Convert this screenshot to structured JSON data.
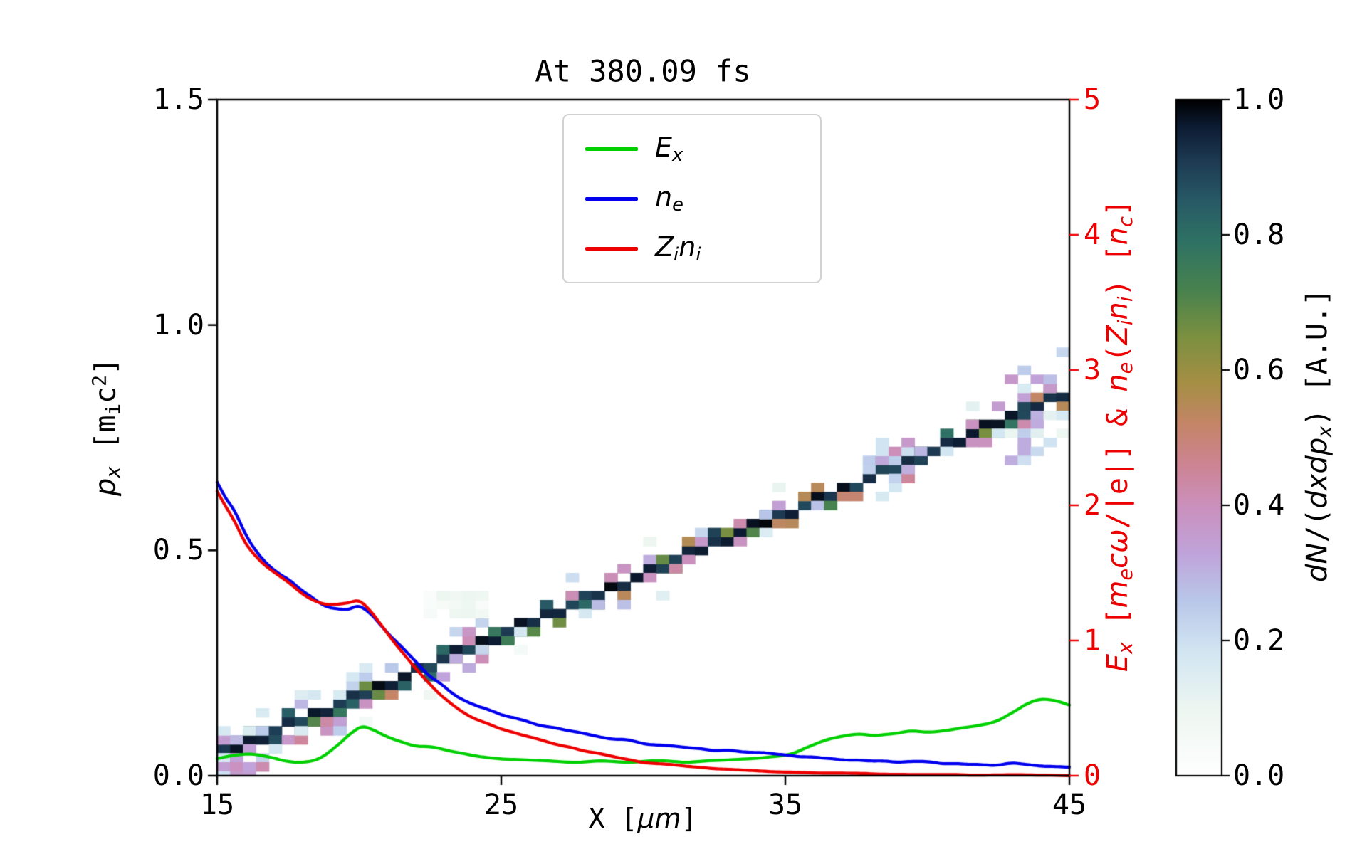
{
  "chart_data": {
    "type": "line+heatmap",
    "title": "At 380.09 fs",
    "x_axis": {
      "label": "X [μm]",
      "range": [
        15,
        45
      ],
      "ticks": [
        15,
        25,
        35,
        45
      ],
      "tick_labels": [
        "15",
        "25",
        "35",
        "45"
      ]
    },
    "y_axis_left": {
      "label": "p_x [m_i c^2]",
      "range": [
        0.0,
        1.5
      ],
      "ticks": [
        0.0,
        0.5,
        1.0,
        1.5
      ],
      "tick_labels": [
        "0.0",
        "0.5",
        "1.0",
        "1.5"
      ],
      "color": "#000000"
    },
    "y_axis_right": {
      "label": "E_x [m_e cω/|e|] & n_e(Z_i n_i) [n_c]",
      "range": [
        0,
        5
      ],
      "ticks": [
        0,
        1,
        2,
        3,
        4,
        5
      ],
      "tick_labels": [
        "0",
        "1",
        "2",
        "3",
        "4",
        "5"
      ],
      "color": "#ee0000"
    },
    "colorbar": {
      "label": "dN/(dxdp_x) [A.U.]",
      "range": [
        0.0,
        1.0
      ],
      "ticks": [
        0.0,
        0.2,
        0.4,
        0.6,
        0.8,
        1.0
      ],
      "tick_labels": [
        "0.0",
        "0.2",
        "0.4",
        "0.6",
        "0.8",
        "1.0"
      ],
      "stops": [
        [
          0.0,
          "#ffffff"
        ],
        [
          0.1,
          "#edf6f1"
        ],
        [
          0.18,
          "#d3e7f2"
        ],
        [
          0.26,
          "#b9c7e9"
        ],
        [
          0.33,
          "#c0a3da"
        ],
        [
          0.4,
          "#cb90bc"
        ],
        [
          0.46,
          "#cd8493"
        ],
        [
          0.52,
          "#c48568"
        ],
        [
          0.58,
          "#a68f45"
        ],
        [
          0.65,
          "#7b9040"
        ],
        [
          0.72,
          "#47824f"
        ],
        [
          0.79,
          "#2f7264"
        ],
        [
          0.85,
          "#285a66"
        ],
        [
          0.91,
          "#1d3a52"
        ],
        [
          0.96,
          "#0d1c33"
        ],
        [
          1.0,
          "#000000"
        ]
      ]
    },
    "legend": {
      "entries": [
        {
          "key": "ex",
          "label": "E_x",
          "color": "#00d000",
          "segments": [
            {
              "t": "E",
              "s": "it"
            },
            {
              "t": "x",
              "s": "itsub"
            }
          ]
        },
        {
          "key": "ne",
          "label": "n_e",
          "color": "#0000ee",
          "segments": [
            {
              "t": "n",
              "s": "it"
            },
            {
              "t": "e",
              "s": "itsub"
            }
          ]
        },
        {
          "key": "zini",
          "label": "Z_i n_i",
          "color": "#ee0000",
          "segments": [
            {
              "t": "Z",
              "s": "it"
            },
            {
              "t": "i",
              "s": "itsub"
            },
            {
              "t": "n",
              "s": "it"
            },
            {
              "t": "i",
              "s": "itsub"
            }
          ]
        }
      ]
    },
    "series": [
      {
        "name": "Ex",
        "axis": "right",
        "color": "#00d000",
        "noise_amp": 0.018,
        "seed": 7,
        "points": [
          [
            15,
            0.13
          ],
          [
            15.6,
            0.15
          ],
          [
            16.2,
            0.16
          ],
          [
            16.8,
            0.14
          ],
          [
            17.4,
            0.11
          ],
          [
            18,
            0.1
          ],
          [
            18.6,
            0.13
          ],
          [
            19.2,
            0.22
          ],
          [
            19.7,
            0.31
          ],
          [
            20.1,
            0.36
          ],
          [
            20.5,
            0.34
          ],
          [
            21,
            0.29
          ],
          [
            21.5,
            0.25
          ],
          [
            22,
            0.22
          ],
          [
            22.6,
            0.21
          ],
          [
            23.2,
            0.18
          ],
          [
            24,
            0.15
          ],
          [
            24.8,
            0.13
          ],
          [
            25.6,
            0.12
          ],
          [
            26.5,
            0.11
          ],
          [
            27.5,
            0.1
          ],
          [
            28.5,
            0.11
          ],
          [
            29.5,
            0.1
          ],
          [
            30.5,
            0.11
          ],
          [
            31.5,
            0.1
          ],
          [
            32.5,
            0.11
          ],
          [
            33.5,
            0.12
          ],
          [
            34.5,
            0.14
          ],
          [
            35.2,
            0.16
          ],
          [
            35.8,
            0.21
          ],
          [
            36.4,
            0.26
          ],
          [
            37,
            0.29
          ],
          [
            37.6,
            0.31
          ],
          [
            38.2,
            0.3
          ],
          [
            38.8,
            0.31
          ],
          [
            39.4,
            0.33
          ],
          [
            40,
            0.32
          ],
          [
            40.6,
            0.33
          ],
          [
            41.2,
            0.35
          ],
          [
            41.8,
            0.37
          ],
          [
            42.4,
            0.4
          ],
          [
            43,
            0.47
          ],
          [
            43.5,
            0.53
          ],
          [
            44,
            0.56
          ],
          [
            44.5,
            0.55
          ],
          [
            45,
            0.52
          ]
        ]
      },
      {
        "name": "n_e",
        "axis": "right",
        "color": "#0000ee",
        "noise_amp": 0.045,
        "seed": 11,
        "points": [
          [
            15,
            2.17
          ],
          [
            15.3,
            2.05
          ],
          [
            15.6,
            1.95
          ],
          [
            16,
            1.78
          ],
          [
            16.4,
            1.66
          ],
          [
            16.8,
            1.56
          ],
          [
            17.2,
            1.49
          ],
          [
            17.6,
            1.43
          ],
          [
            18,
            1.36
          ],
          [
            18.4,
            1.31
          ],
          [
            18.8,
            1.27
          ],
          [
            19.2,
            1.25
          ],
          [
            19.6,
            1.24
          ],
          [
            20,
            1.26
          ],
          [
            20.4,
            1.2
          ],
          [
            20.8,
            1.1
          ],
          [
            21.2,
            1.0
          ],
          [
            21.6,
            0.92
          ],
          [
            22,
            0.84
          ],
          [
            22.4,
            0.76
          ],
          [
            22.8,
            0.69
          ],
          [
            23.2,
            0.62
          ],
          [
            23.6,
            0.57
          ],
          [
            24,
            0.53
          ],
          [
            24.5,
            0.49
          ],
          [
            25,
            0.45
          ],
          [
            25.5,
            0.42
          ],
          [
            26,
            0.4
          ],
          [
            26.5,
            0.37
          ],
          [
            27,
            0.35
          ],
          [
            27.5,
            0.33
          ],
          [
            28,
            0.31
          ],
          [
            28.5,
            0.29
          ],
          [
            29,
            0.27
          ],
          [
            29.5,
            0.26
          ],
          [
            30,
            0.24
          ],
          [
            30.5,
            0.23
          ],
          [
            31,
            0.22
          ],
          [
            31.5,
            0.21
          ],
          [
            32,
            0.2
          ],
          [
            32.5,
            0.19
          ],
          [
            33,
            0.19
          ],
          [
            33.5,
            0.18
          ],
          [
            34,
            0.17
          ],
          [
            34.5,
            0.16
          ],
          [
            35,
            0.15
          ],
          [
            35.5,
            0.14
          ],
          [
            36,
            0.14
          ],
          [
            36.5,
            0.13
          ],
          [
            37,
            0.12
          ],
          [
            37.5,
            0.12
          ],
          [
            38,
            0.11
          ],
          [
            38.5,
            0.11
          ],
          [
            39,
            0.1
          ],
          [
            39.5,
            0.1
          ],
          [
            40,
            0.1
          ],
          [
            40.5,
            0.09
          ],
          [
            41,
            0.09
          ],
          [
            41.5,
            0.08
          ],
          [
            42,
            0.08
          ],
          [
            42.5,
            0.08
          ],
          [
            43,
            0.09
          ],
          [
            43.5,
            0.08
          ],
          [
            44,
            0.07
          ],
          [
            44.5,
            0.07
          ],
          [
            45,
            0.06
          ]
        ]
      },
      {
        "name": "Z_i n_i",
        "axis": "right",
        "color": "#ee0000",
        "noise_amp": 0.022,
        "seed": 13,
        "points": [
          [
            15,
            2.1
          ],
          [
            15.3,
            2.0
          ],
          [
            15.6,
            1.9
          ],
          [
            16,
            1.74
          ],
          [
            16.4,
            1.63
          ],
          [
            16.8,
            1.54
          ],
          [
            17.2,
            1.47
          ],
          [
            17.6,
            1.41
          ],
          [
            18,
            1.35
          ],
          [
            18.4,
            1.3
          ],
          [
            18.8,
            1.27
          ],
          [
            19.2,
            1.27
          ],
          [
            19.6,
            1.28
          ],
          [
            20,
            1.29
          ],
          [
            20.4,
            1.22
          ],
          [
            20.8,
            1.11
          ],
          [
            21.2,
            1.0
          ],
          [
            21.6,
            0.9
          ],
          [
            22,
            0.8
          ],
          [
            22.4,
            0.7
          ],
          [
            22.8,
            0.61
          ],
          [
            23.2,
            0.54
          ],
          [
            23.6,
            0.48
          ],
          [
            24,
            0.43
          ],
          [
            24.5,
            0.39
          ],
          [
            25,
            0.35
          ],
          [
            25.5,
            0.32
          ],
          [
            26,
            0.29
          ],
          [
            26.5,
            0.26
          ],
          [
            27,
            0.23
          ],
          [
            27.5,
            0.21
          ],
          [
            28,
            0.18
          ],
          [
            28.5,
            0.16
          ],
          [
            29,
            0.14
          ],
          [
            29.5,
            0.12
          ],
          [
            30,
            0.1
          ],
          [
            30.5,
            0.09
          ],
          [
            31,
            0.08
          ],
          [
            31.5,
            0.07
          ],
          [
            32,
            0.06
          ],
          [
            32.5,
            0.05
          ],
          [
            33,
            0.045
          ],
          [
            33.5,
            0.04
          ],
          [
            34,
            0.035
          ],
          [
            34.5,
            0.03
          ],
          [
            35,
            0.028
          ],
          [
            36,
            0.022
          ],
          [
            37,
            0.018
          ],
          [
            38,
            0.014
          ],
          [
            39,
            0.011
          ],
          [
            40,
            0.009
          ],
          [
            41,
            0.007
          ],
          [
            42,
            0.006
          ],
          [
            43,
            0.005
          ],
          [
            44,
            0.004
          ],
          [
            45,
            0.003
          ]
        ]
      }
    ],
    "phase_band": {
      "description": "ion phase-space density band dN/(dxdp_x)",
      "x_range": [
        15,
        45
      ],
      "p_range": [
        0.045,
        0.85
      ],
      "cell_w_um": 0.4545,
      "cell_h_p": 0.02,
      "core_value_range": [
        0.88,
        1.0
      ],
      "seed": 99,
      "faint_blob": {
        "x_range": [
          22.2,
          24.4
        ],
        "p_range": [
          0.355,
          0.41
        ],
        "value_range": [
          0.03,
          0.1
        ]
      }
    }
  },
  "labels": {
    "xlabel_segments": [
      {
        "t": "X [",
        "s": "mono"
      },
      {
        "t": "μm",
        "s": "it"
      },
      {
        "t": "]",
        "s": "mono"
      }
    ],
    "left_ylabel_segments": [
      {
        "t": "p",
        "s": "it"
      },
      {
        "t": "x",
        "s": "itsub"
      },
      {
        "t": " [",
        "s": "mono"
      },
      {
        "t": "m",
        "s": "mono"
      },
      {
        "t": "i",
        "s": "monosub"
      },
      {
        "t": "c",
        "s": "mono"
      },
      {
        "t": "2",
        "s": "monosup"
      },
      {
        "t": "]",
        "s": "mono"
      }
    ],
    "right_ylabel_segments": [
      {
        "t": "E",
        "s": "it"
      },
      {
        "t": "x",
        "s": "itsub"
      },
      {
        "t": " [",
        "s": "mono"
      },
      {
        "t": "m",
        "s": "it"
      },
      {
        "t": "e",
        "s": "itsub"
      },
      {
        "t": "c",
        "s": "it"
      },
      {
        "t": "ω",
        "s": "it"
      },
      {
        "t": "/|e|] & ",
        "s": "mono"
      },
      {
        "t": "n",
        "s": "it"
      },
      {
        "t": "e",
        "s": "itsub"
      },
      {
        "t": "(",
        "s": "mono"
      },
      {
        "t": "Z",
        "s": "it"
      },
      {
        "t": "i",
        "s": "itsub"
      },
      {
        "t": "n",
        "s": "it"
      },
      {
        "t": "i",
        "s": "itsub"
      },
      {
        "t": ")",
        "s": "mono"
      },
      {
        "t": " [",
        "s": "mono"
      },
      {
        "t": "n",
        "s": "it"
      },
      {
        "t": "c",
        "s": "itsub"
      },
      {
        "t": "]",
        "s": "mono"
      }
    ],
    "colorbar_label_segments": [
      {
        "t": "dN",
        "s": "it"
      },
      {
        "t": "/(",
        "s": "mono"
      },
      {
        "t": "dxdp",
        "s": "it"
      },
      {
        "t": "x",
        "s": "itsub"
      },
      {
        "t": ")",
        "s": "mono"
      },
      {
        "t": " [A.U.]",
        "s": "mono"
      }
    ]
  }
}
